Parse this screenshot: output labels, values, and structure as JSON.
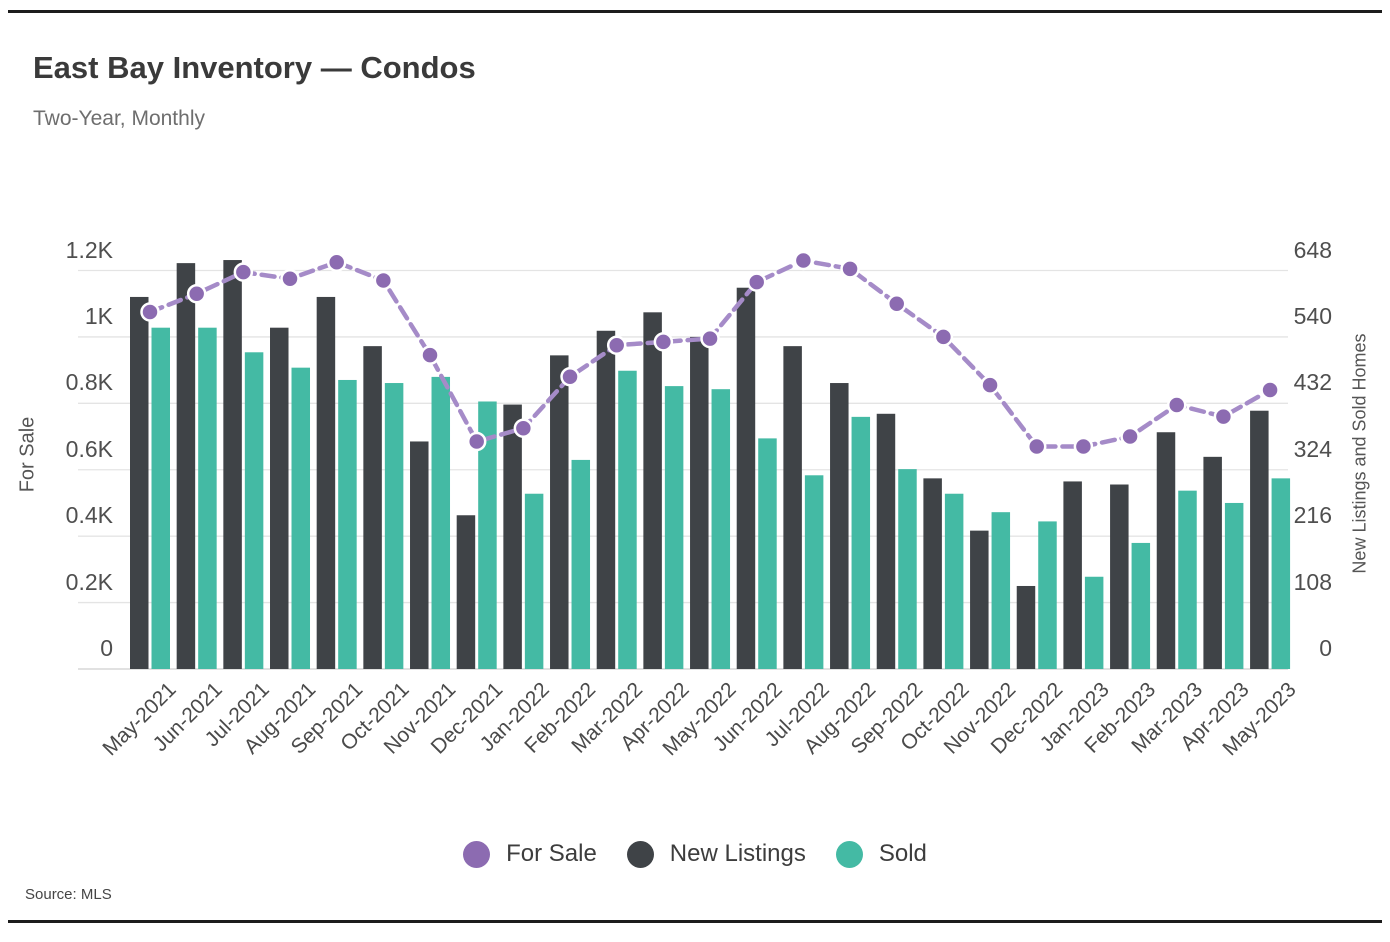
{
  "page": {
    "title": "East Bay Inventory — Condos",
    "subtitle": "Two-Year, Monthly",
    "source": "Source:  MLS"
  },
  "legend": [
    {
      "label": "For Sale",
      "color": "#8c6bb1"
    },
    {
      "label": "New Listings",
      "color": "#3f4347"
    },
    {
      "label": "Sold",
      "color": "#44baa4"
    }
  ],
  "chart_data": {
    "type": "bar",
    "subtype": "grouped bars with overlaid line, dual y-axis",
    "title": "East Bay Inventory — Condos",
    "subtitle": "Two-Year, Monthly",
    "categories": [
      "May-2021",
      "Jun-2021",
      "Jul-2021",
      "Aug-2021",
      "Sep-2021",
      "Oct-2021",
      "Nov-2021",
      "Dec-2021",
      "Jan-2022",
      "Feb-2022",
      "Mar-2022",
      "Apr-2022",
      "May-2022",
      "Jun-2022",
      "Jul-2022",
      "Aug-2022",
      "Sep-2022",
      "Oct-2022",
      "Nov-2022",
      "Dec-2022",
      "Jan-2023",
      "Feb-2023",
      "Mar-2023",
      "Apr-2023",
      "May-2023"
    ],
    "series": [
      {
        "name": "For Sale",
        "type": "line",
        "axis": "left",
        "color": "#8c6bb1",
        "line_color": "#a58bc8",
        "dashed": true,
        "values": [
          1075,
          1130,
          1195,
          1175,
          1225,
          1170,
          945,
          685,
          725,
          880,
          975,
          985,
          995,
          1165,
          1230,
          1205,
          1100,
          1000,
          855,
          670,
          670,
          700,
          795,
          760,
          840
        ]
      },
      {
        "name": "New Listings",
        "type": "bar",
        "axis": "right",
        "color": "#3f4347",
        "values": [
          605,
          660,
          665,
          555,
          605,
          525,
          370,
          250,
          430,
          510,
          550,
          580,
          540,
          620,
          525,
          465,
          415,
          310,
          225,
          135,
          305,
          300,
          385,
          345,
          420
        ]
      },
      {
        "name": "Sold",
        "type": "bar",
        "axis": "right",
        "color": "#44baa4",
        "values": [
          555,
          555,
          515,
          490,
          470,
          465,
          475,
          435,
          285,
          340,
          485,
          460,
          455,
          375,
          315,
          410,
          325,
          285,
          255,
          240,
          150,
          205,
          290,
          270,
          310
        ]
      }
    ],
    "left_axis": {
      "title": "For Sale",
      "min": 0,
      "max": 1200,
      "ticks": [
        "0",
        "0.2K",
        "0.4K",
        "0.6K",
        "0.8K",
        "1K",
        "1.2K"
      ]
    },
    "right_axis": {
      "title": "New Listings and Sold Homes",
      "min": 0,
      "max": 648,
      "ticks": [
        "0",
        "108",
        "216",
        "324",
        "432",
        "540",
        "648"
      ]
    },
    "grid": true,
    "legend_position": "bottom",
    "background": "#ffffff",
    "gridline_color": "#e4e4e4",
    "baseline_color": "#cfcfcf"
  }
}
